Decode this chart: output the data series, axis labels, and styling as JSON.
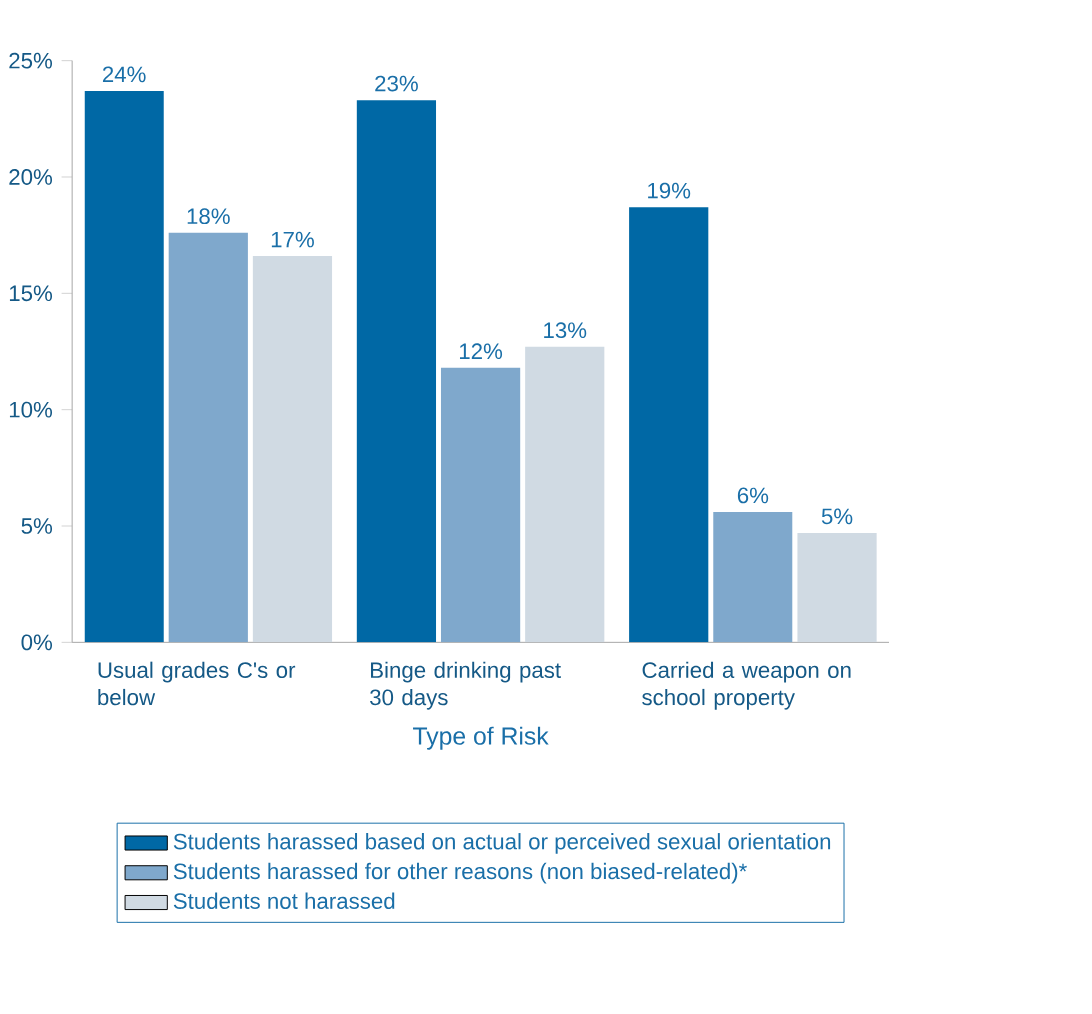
{
  "chart_data": {
    "type": "bar",
    "xlabel": "Type of Risk",
    "categories": [
      "Usual grades C's or below",
      "Binge drinking past 30 days",
      "Carried a weapon on school property"
    ],
    "series": [
      {
        "name": "Students harassed based on actual or perceived sexual orientation",
        "color": "#0068a5",
        "values": [
          23.7,
          23.3,
          18.7
        ],
        "value_labels": [
          "24%",
          "23%",
          "19%"
        ]
      },
      {
        "name": "Students harassed for other reasons (non biased-related)*",
        "color": "#7fa8cc",
        "values": [
          17.6,
          11.8,
          5.6
        ],
        "value_labels": [
          "18%",
          "12%",
          "6%"
        ]
      },
      {
        "name": "Students not harassed",
        "color": "#d0dae3",
        "values": [
          16.6,
          12.7,
          4.7
        ],
        "value_labels": [
          "17%",
          "13%",
          "5%"
        ]
      }
    ],
    "ylim": [
      0,
      25
    ],
    "yticks": [
      {
        "value": 0,
        "label": "0%"
      },
      {
        "value": 5,
        "label": "5%"
      },
      {
        "value": 10,
        "label": "10%"
      },
      {
        "value": 15,
        "label": "15%"
      },
      {
        "value": 20,
        "label": "20%"
      },
      {
        "value": 25,
        "label": "25%"
      }
    ],
    "grid": false,
    "legend": "bottom"
  }
}
